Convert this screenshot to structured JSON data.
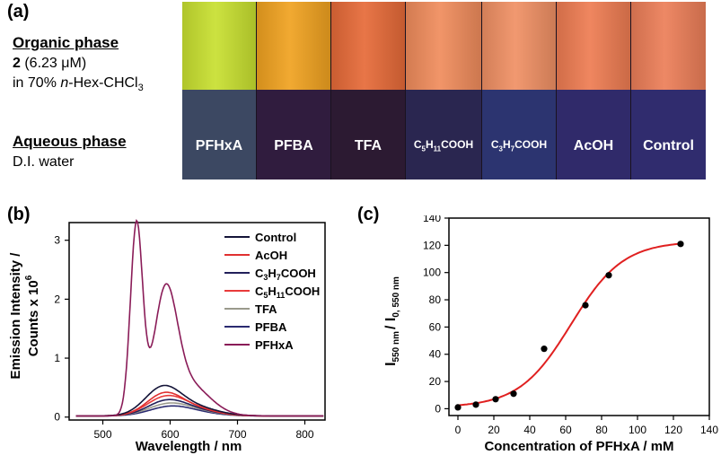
{
  "panel_a": {
    "label": "(a)",
    "organic_title": "Organic phase",
    "organic_compound_num": "2",
    "organic_conc": " (6.23 μM)",
    "organic_solvent_prefix": "in 70% ",
    "organic_solvent_italic": "n",
    "organic_solvent_mid": "-Hex-CHCl",
    "organic_solvent_sub": "3",
    "aqueous_title": "Aqueous phase",
    "aqueous_solvent": "D.I. water",
    "vials": [
      {
        "label": "PFHxA",
        "org_color": "#c8e030",
        "aq_color": "#3c4862"
      },
      {
        "label": "PFBA",
        "org_color": "#f0a220",
        "aq_color": "#301c3e"
      },
      {
        "label": "TFA",
        "org_color": "#e66a38",
        "aq_color": "#2c1a32"
      },
      {
        "label_main": "C",
        "label_sub1": "5",
        "label_mid": "H",
        "label_sub2": "11",
        "label_end": "COOH",
        "org_color": "#f08c5c",
        "aq_color": "#2a2650"
      },
      {
        "label_main": "C",
        "label_sub1": "3",
        "label_mid": "H",
        "label_sub2": "7",
        "label_end": "COOH",
        "org_color": "#f09064",
        "aq_color": "#2c3470"
      },
      {
        "label": "AcOH",
        "org_color": "#ee7c52",
        "aq_color": "#302a6a"
      },
      {
        "label": "Control",
        "org_color": "#ec7e58",
        "aq_color": "#302c6e"
      }
    ]
  },
  "panel_b": {
    "label": "(b)",
    "ylabel_line1": "Emission Intensity /",
    "ylabel_line2": "Counts x 10",
    "ylabel_exp": "6",
    "xlabel": "Wavelength / nm",
    "legend": [
      {
        "text": "Control",
        "color": "#141438"
      },
      {
        "text": "AcOH",
        "color": "#e03030"
      },
      {
        "sub_main": "C",
        "sub1": "3",
        "sub_mid": "H",
        "sub2": "7",
        "sub_end": "COOH",
        "color": "#22205a"
      },
      {
        "sub_main": "C",
        "sub1": "5",
        "sub_mid": "H",
        "sub2": "11",
        "sub_end": "COOH",
        "color": "#e83a3a"
      },
      {
        "text": "TFA",
        "color": "#9a9a8c"
      },
      {
        "text": "PFBA",
        "color": "#2a2a70"
      },
      {
        "text": "PFHxA",
        "color": "#8a1c58"
      }
    ]
  },
  "panel_c": {
    "label": "(c)",
    "ylabel_main": "I",
    "ylabel_sub1": "550 nm",
    "ylabel_mid": "/ I",
    "ylabel_sub2": "0, 550 nm",
    "xlabel": "Concentration of PFHxA / mM"
  },
  "chart_data": [
    {
      "type": "line",
      "xlim": [
        450,
        830
      ],
      "ylim": [
        -0.05,
        3.3
      ],
      "x_ticks": [
        500,
        600,
        700,
        800
      ],
      "y_ticks": [
        0,
        1,
        2,
        3
      ],
      "x_tick_labels": [
        "500",
        "600",
        "700",
        "800"
      ],
      "y_tick_labels": [
        "0",
        "1",
        "2",
        "3"
      ],
      "grid": false,
      "legend_position": "top-right",
      "series": [
        {
          "name": "PFHxA",
          "color": "#8a1c58",
          "peaks": [
            {
              "x": 550,
              "y": 3.2,
              "w": 9
            },
            {
              "x": 593,
              "y": 1.9,
              "w": 17
            }
          ],
          "tail": {
            "x": 625,
            "y": 0.55,
            "w": 32
          }
        },
        {
          "name": "Control",
          "color": "#141438",
          "peaks": [
            {
              "x": 588,
              "y": 0.43,
              "w": 26
            }
          ],
          "tail": {
            "x": 630,
            "y": 0.16,
            "w": 36
          }
        },
        {
          "name": "AcOH",
          "color": "#e03030",
          "peaks": [
            {
              "x": 590,
              "y": 0.33,
              "w": 26
            }
          ],
          "tail": {
            "x": 630,
            "y": 0.13,
            "w": 34
          }
        },
        {
          "name": "C5H11COOH",
          "color": "#e83a3a",
          "peaks": [
            {
              "x": 592,
              "y": 0.28,
              "w": 28
            }
          ],
          "tail": {
            "x": 632,
            "y": 0.12,
            "w": 34
          }
        },
        {
          "name": "C3H7COOH",
          "color": "#22205a",
          "peaks": [
            {
              "x": 593,
              "y": 0.22,
              "w": 28
            }
          ],
          "tail": {
            "x": 632,
            "y": 0.1,
            "w": 34
          }
        },
        {
          "name": "TFA",
          "color": "#9a9a8c",
          "peaks": [
            {
              "x": 595,
              "y": 0.17,
              "w": 30
            }
          ],
          "tail": {
            "x": 632,
            "y": 0.08,
            "w": 34
          }
        },
        {
          "name": "PFBA",
          "color": "#2a2a70",
          "peaks": [
            {
              "x": 597,
              "y": 0.13,
              "w": 30
            }
          ],
          "tail": {
            "x": 632,
            "y": 0.06,
            "w": 34
          }
        }
      ]
    },
    {
      "type": "scatter",
      "xlim": [
        -5,
        140
      ],
      "ylim": [
        -5,
        140
      ],
      "x_ticks": [
        0,
        20,
        40,
        60,
        80,
        100,
        120,
        140
      ],
      "y_ticks": [
        0,
        20,
        40,
        60,
        80,
        100,
        120,
        140
      ],
      "x_tick_labels": [
        "0",
        "20",
        "40",
        "60",
        "80",
        "100",
        "120",
        "140"
      ],
      "y_tick_labels": [
        "0",
        "20",
        "40",
        "60",
        "80",
        "100",
        "120",
        "140"
      ],
      "grid": false,
      "points": {
        "x": [
          0,
          10,
          21,
          31,
          48,
          71,
          84,
          124
        ],
        "y": [
          1,
          3,
          7,
          11,
          44,
          76,
          98,
          121
        ]
      },
      "fit": {
        "type": "sigmoid",
        "color": "#e02020",
        "A1": 1,
        "A2": 123,
        "x0": 63,
        "dx": 14.5
      }
    }
  ]
}
